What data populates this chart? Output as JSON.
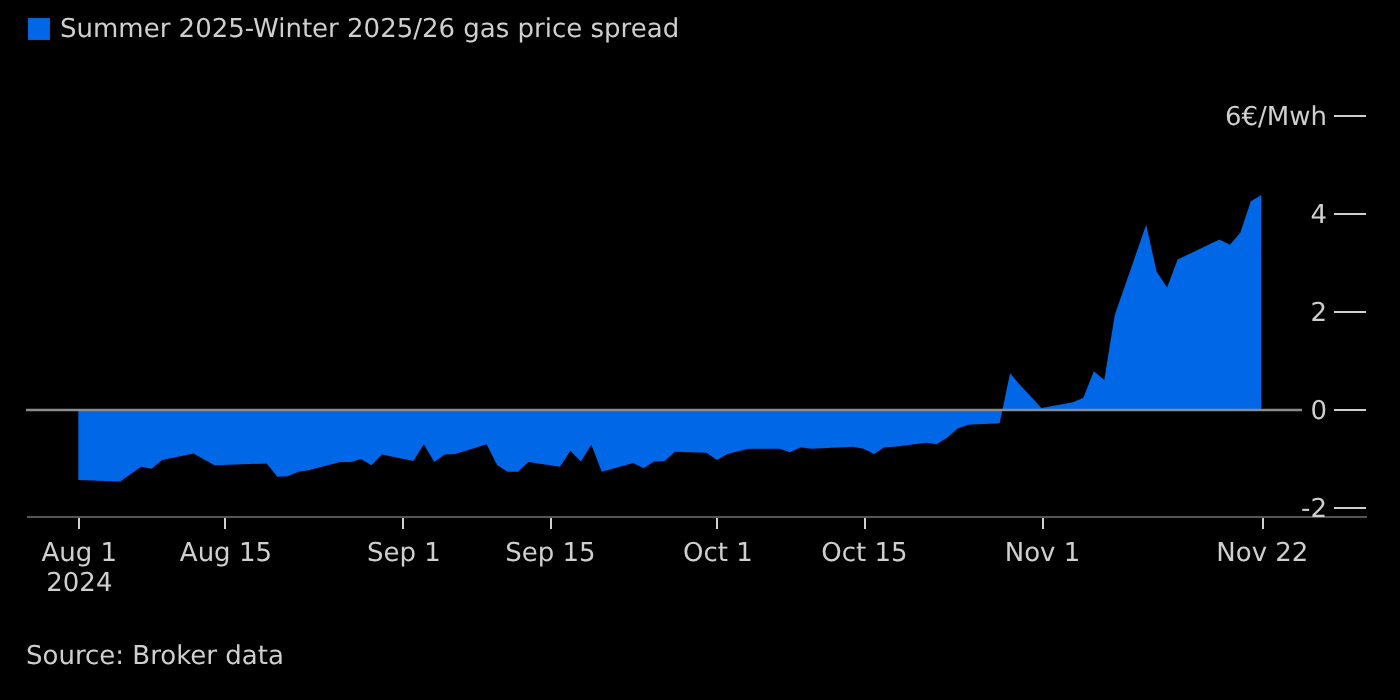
{
  "chart_data": {
    "type": "area",
    "x": [
      "2024-08-01",
      "2024-08-05",
      "2024-08-07",
      "2024-08-08",
      "2024-08-09",
      "2024-08-12",
      "2024-08-14",
      "2024-08-19",
      "2024-08-20",
      "2024-08-21",
      "2024-08-22",
      "2024-08-23",
      "2024-08-26",
      "2024-08-27",
      "2024-08-28",
      "2024-08-29",
      "2024-08-30",
      "2024-09-02",
      "2024-09-03",
      "2024-09-04",
      "2024-09-05",
      "2024-09-06",
      "2024-09-09",
      "2024-09-10",
      "2024-09-11",
      "2024-09-12",
      "2024-09-13",
      "2024-09-16",
      "2024-09-17",
      "2024-09-18",
      "2024-09-19",
      "2024-09-20",
      "2024-09-23",
      "2024-09-24",
      "2024-09-25",
      "2024-09-26",
      "2024-09-27",
      "2024-09-30",
      "2024-10-01",
      "2024-10-02",
      "2024-10-04",
      "2024-10-07",
      "2024-10-08",
      "2024-10-09",
      "2024-10-10",
      "2024-10-14",
      "2024-10-15",
      "2024-10-16",
      "2024-10-17",
      "2024-10-18",
      "2024-10-21",
      "2024-10-22",
      "2024-10-23",
      "2024-10-24",
      "2024-10-25",
      "2024-10-28",
      "2024-10-29",
      "2024-10-30",
      "2024-11-01",
      "2024-11-04",
      "2024-11-05",
      "2024-11-06",
      "2024-11-07",
      "2024-11-08",
      "2024-11-11",
      "2024-11-12",
      "2024-11-13",
      "2024-11-14",
      "2024-11-18",
      "2024-11-19",
      "2024-11-20",
      "2024-11-21",
      "2024-11-22"
    ],
    "series": [
      {
        "name": "Summer 2025-Winter 2025/26 gas price spread",
        "color": "#0068e6",
        "values": [
          -1.43,
          -1.46,
          -1.16,
          -1.2,
          -1.02,
          -0.89,
          -1.13,
          -1.09,
          -1.36,
          -1.35,
          -1.26,
          -1.23,
          -1.06,
          -1.06,
          -1.0,
          -1.13,
          -0.91,
          -1.04,
          -0.7,
          -1.06,
          -0.91,
          -0.9,
          -0.7,
          -1.12,
          -1.26,
          -1.26,
          -1.06,
          -1.16,
          -0.83,
          -1.05,
          -0.71,
          -1.26,
          -1.08,
          -1.19,
          -1.05,
          -1.04,
          -0.85,
          -0.87,
          -1.02,
          -0.9,
          -0.79,
          -0.79,
          -0.86,
          -0.76,
          -0.79,
          -0.75,
          -0.79,
          -0.9,
          -0.76,
          -0.75,
          -0.67,
          -0.7,
          -0.56,
          -0.38,
          -0.3,
          -0.27,
          0.75,
          0.5,
          0.04,
          0.16,
          0.25,
          0.79,
          0.61,
          1.94,
          3.78,
          2.82,
          2.5,
          3.07,
          3.48,
          3.37,
          3.62,
          4.26,
          4.39
        ]
      }
    ],
    "xlim": [
      "2024-07-27",
      "2024-12-02"
    ],
    "xticks": [
      {
        "value": "2024-08-01",
        "label": "Aug 1\n2024"
      },
      {
        "value": "2024-08-15",
        "label": "Aug 15"
      },
      {
        "value": "2024-09-01",
        "label": "Sep 1"
      },
      {
        "value": "2024-09-15",
        "label": "Sep 15"
      },
      {
        "value": "2024-10-01",
        "label": "Oct 1"
      },
      {
        "value": "2024-10-15",
        "label": "Oct 15"
      },
      {
        "value": "2024-11-01",
        "label": "Nov 1"
      },
      {
        "value": "2024-11-22",
        "label": "Nov 22"
      }
    ],
    "ylim": [
      -2,
      6
    ],
    "yticks": [
      -2,
      0,
      2,
      4,
      {
        "value": 6,
        "label": "6€/Mwh"
      }
    ],
    "ref_lines": [
      {
        "axis": "y",
        "value": 0,
        "color": "#8c8c8c"
      }
    ],
    "grid": false,
    "legend": "top left",
    "annotations": [
      "Source: Broker data"
    ]
  }
}
